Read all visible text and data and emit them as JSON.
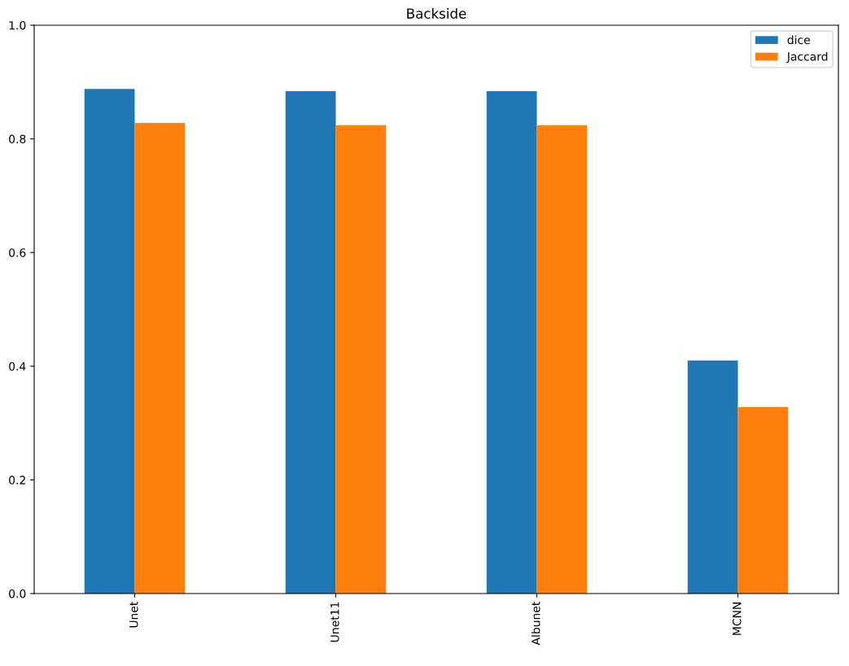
{
  "chart_data": {
    "type": "bar",
    "title": "Backside",
    "categories": [
      "Unet",
      "Unet11",
      "Albunet",
      "MCNN"
    ],
    "series": [
      {
        "name": "dice",
        "color": "#1f77b4",
        "values": [
          0.888,
          0.884,
          0.884,
          0.41
        ]
      },
      {
        "name": "Jaccard",
        "color": "#ff7f0e",
        "values": [
          0.828,
          0.824,
          0.824,
          0.328
        ]
      }
    ],
    "ylim": [
      0,
      1.0
    ],
    "yticks": [
      {
        "value": 0,
        "label": "0.0"
      },
      0.2,
      0.4,
      0.6,
      0.8,
      {
        "value": 1.0,
        "label": "1.0"
      }
    ],
    "grid": false,
    "legend": "top right"
  }
}
